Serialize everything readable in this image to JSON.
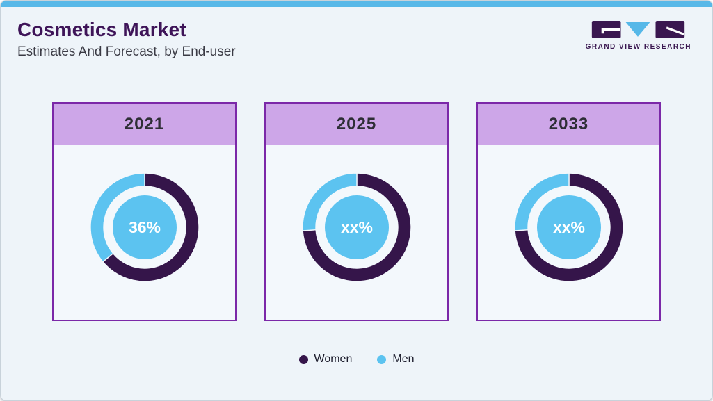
{
  "header": {
    "title": "Cosmetics Market",
    "subtitle": "Estimates And Forecast, by End-user"
  },
  "logo": {
    "text": "GRAND VIEW RESEARCH"
  },
  "colors": {
    "women": "#35154a",
    "men": "#5cc3f0",
    "card_border": "#7b28a8",
    "card_header_bg": "#cda6e8",
    "card_bg": "#f3f8fc",
    "topbar_accent": "#58b8e8",
    "page_bg": "#eef4f9",
    "title_text": "#3e1458",
    "logo_dark": "#3a1750"
  },
  "legend": [
    {
      "label": "Women",
      "series": "women"
    },
    {
      "label": "Men",
      "series": "men"
    }
  ],
  "chart_data": {
    "type": "pie",
    "variant": "donut",
    "title": "Cosmetics Market Estimates And Forecast, by End-user",
    "legend_position": "bottom",
    "series_names": [
      "Women",
      "Men"
    ],
    "charts": [
      {
        "year": "2021",
        "center_label": "36%",
        "slices": [
          {
            "name": "Women",
            "series": "women",
            "value": 64
          },
          {
            "name": "Men",
            "series": "men",
            "value": 36
          }
        ]
      },
      {
        "year": "2025",
        "center_label": "xx%",
        "slices": [
          {
            "name": "Women",
            "series": "women",
            "value": 74
          },
          {
            "name": "Men",
            "series": "men",
            "value": 26
          }
        ]
      },
      {
        "year": "2033",
        "center_label": "xx%",
        "slices": [
          {
            "name": "Women",
            "series": "women",
            "value": 74
          },
          {
            "name": "Men",
            "series": "men",
            "value": 26
          }
        ]
      }
    ]
  }
}
